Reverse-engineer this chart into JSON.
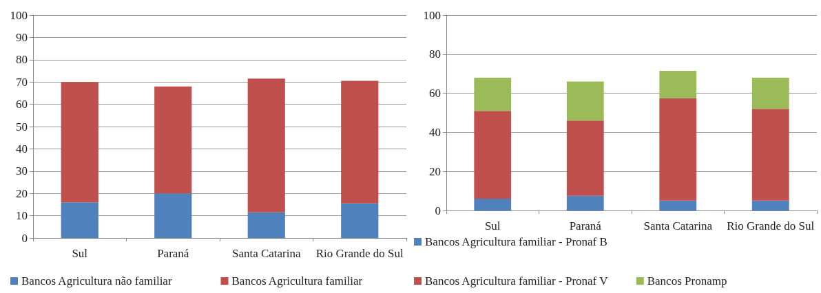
{
  "chart_data": [
    {
      "type": "bar",
      "stacked": true,
      "categories": [
        "Sul",
        "Paraná",
        "Santa Catarina",
        "Rio Grande do Sul"
      ],
      "ylim": [
        0,
        100
      ],
      "yticks": [
        0,
        10,
        20,
        30,
        40,
        50,
        60,
        70,
        80,
        90,
        100
      ],
      "grid": "y",
      "legend": "bottom",
      "series": [
        {
          "name": "Bancos Agricultura não familiar",
          "color": "#4f81bd",
          "values": [
            16,
            20,
            11.5,
            15.5
          ]
        },
        {
          "name": "Bancos Agricultura familiar",
          "color": "#c0504d",
          "values": [
            54,
            48,
            60,
            55
          ]
        }
      ]
    },
    {
      "type": "bar",
      "stacked": true,
      "categories": [
        "Sul",
        "Paraná",
        "Santa Catarina",
        "Rio Grande do Sul"
      ],
      "ylim": [
        0,
        100
      ],
      "yticks": [
        0,
        20,
        40,
        60,
        80,
        100
      ],
      "grid": "y",
      "legend": "bottom",
      "series": [
        {
          "name": "Bancos Agricultura familiar - Pronaf B",
          "color": "#4f81bd",
          "values": [
            6,
            7.5,
            5,
            5
          ]
        },
        {
          "name": "Bancos Agricultura familiar - Pronaf V",
          "color": "#c0504d",
          "values": [
            45,
            38.5,
            52.5,
            47
          ]
        },
        {
          "name": "Bancos Pronamp",
          "color": "#9bbb59",
          "values": [
            17,
            20,
            14,
            16
          ]
        }
      ]
    }
  ]
}
